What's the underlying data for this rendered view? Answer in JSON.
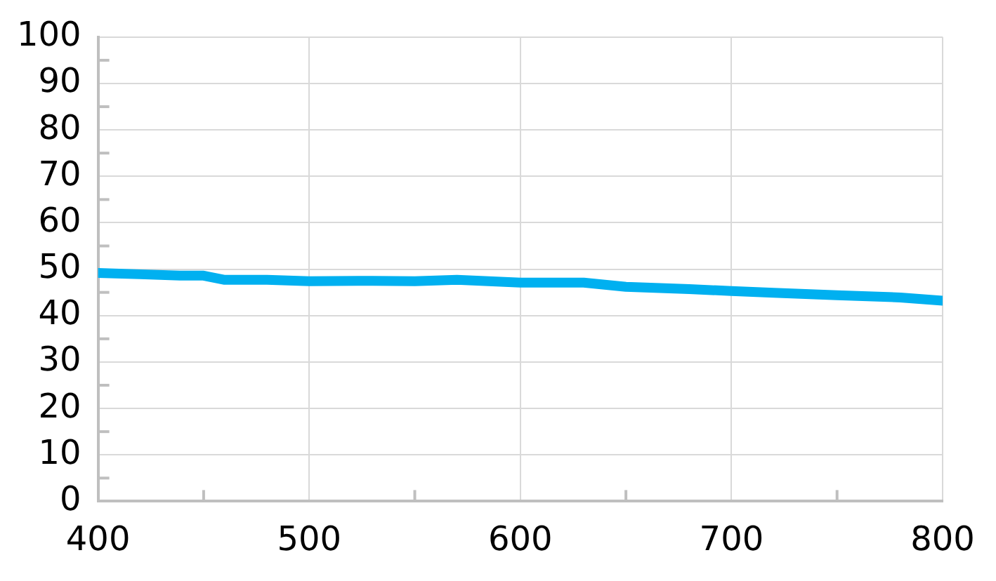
{
  "chart_data": {
    "type": "line",
    "x": [
      400,
      420,
      440,
      450,
      460,
      480,
      500,
      530,
      550,
      570,
      600,
      630,
      650,
      680,
      700,
      720,
      750,
      780,
      800
    ],
    "series": [
      {
        "color": "#00b0f0",
        "values": [
          49.2,
          48.9,
          48.6,
          48.6,
          47.7,
          47.7,
          47.4,
          47.5,
          47.4,
          47.7,
          47.1,
          47.1,
          46.2,
          45.7,
          45.3,
          44.9,
          44.4,
          43.9,
          43.2
        ]
      }
    ],
    "xlim": [
      400,
      800
    ],
    "xticks": [
      400,
      500,
      600,
      700,
      800
    ],
    "ylim": [
      0,
      100
    ],
    "yticks": [
      0,
      10,
      20,
      30,
      40,
      50,
      60,
      70,
      80,
      90,
      100
    ],
    "grid": true,
    "legend": false,
    "marker": "none",
    "line_style": "solid"
  }
}
